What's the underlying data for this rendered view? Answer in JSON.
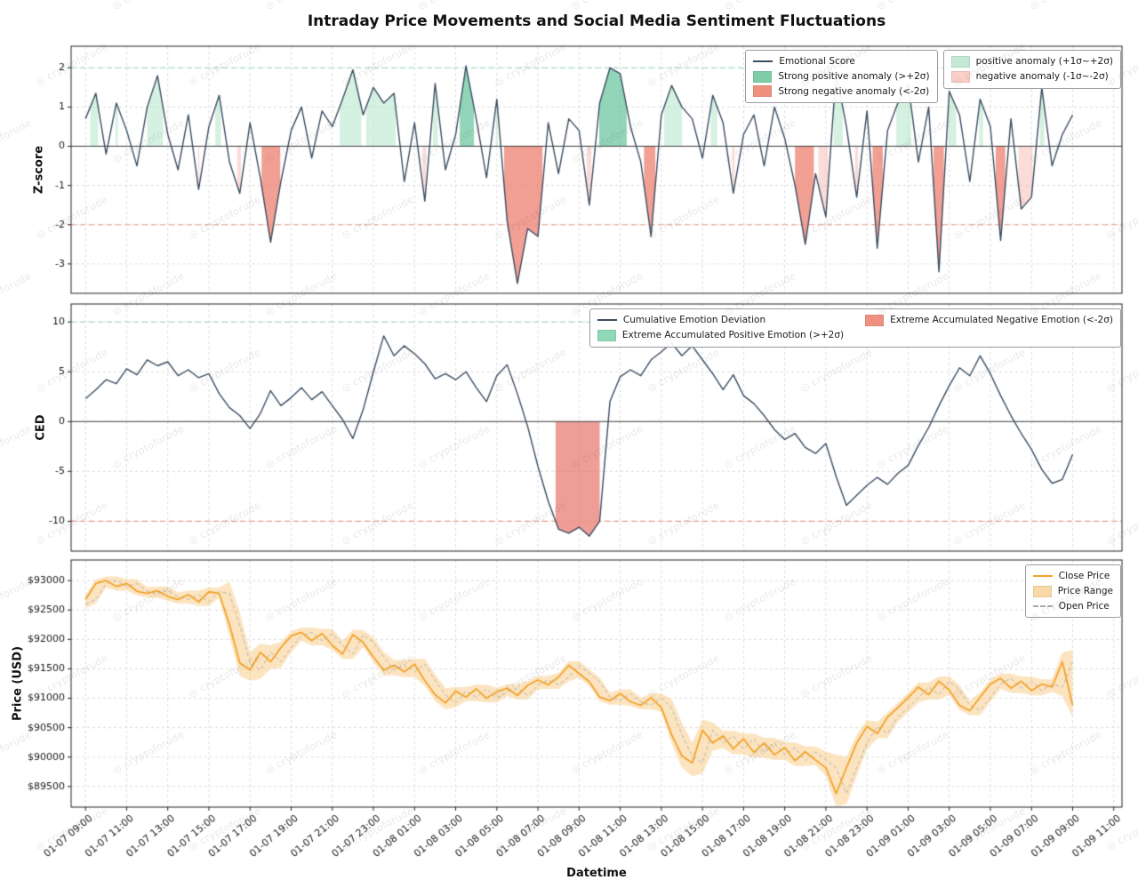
{
  "figure": {
    "title": "Intraday Price Movements and Social Media Sentiment Fluctuations",
    "xlabel": "Datetime",
    "watermark_text": "cryptoforude"
  },
  "x_axis": {
    "tick_interval_hours": 2,
    "step_hours_per_point": 0.5,
    "tick_labels": [
      "01-07 09:00",
      "01-07 11:00",
      "01-07 13:00",
      "01-07 15:00",
      "01-07 17:00",
      "01-07 19:00",
      "01-07 21:00",
      "01-07 23:00",
      "01-08 01:00",
      "01-08 03:00",
      "01-08 05:00",
      "01-08 07:00",
      "01-08 09:00",
      "01-08 11:00",
      "01-08 13:00",
      "01-08 15:00",
      "01-08 17:00",
      "01-08 19:00",
      "01-08 21:00",
      "01-08 23:00",
      "01-09 01:00",
      "01-09 03:00",
      "01-09 05:00",
      "01-09 07:00",
      "01-09 09:00",
      "01-09 11:00"
    ]
  },
  "chart_data": [
    {
      "type": "line",
      "id": "zscore",
      "ylabel": "Z-score",
      "ylim": [
        -3.75,
        2.55
      ],
      "yticks": [
        -3,
        -2,
        -1,
        0,
        1,
        2
      ],
      "ytick_labels": [
        "-3",
        "-2",
        "-1",
        "0",
        "1",
        "2"
      ],
      "thresholds": {
        "upper": 2,
        "lower": -2,
        "inner_upper": 1,
        "inner_lower": -1
      },
      "colors": {
        "line": "#3b4d61",
        "strong_pos": "rgba(110,199,160,0.75)",
        "weak_pos": "rgba(178,230,200,0.55)",
        "strong_neg": "rgba(236,118,102,0.7)",
        "weak_neg": "rgba(248,192,184,0.55)",
        "upper_line": "#8fd9c0",
        "lower_line": "#f29a8b"
      },
      "legend": [
        {
          "label": "Emotional Score",
          "swatch": "line",
          "color": "#3b4d61"
        },
        {
          "label": "Strong positive anomaly (>+2σ)",
          "swatch": "patch",
          "color": "#7fcda7"
        },
        {
          "label": "Strong negative anomaly (<-2σ)",
          "swatch": "patch",
          "color": "#f0917e"
        },
        {
          "label": "positive anomaly (+1σ~+2σ)",
          "swatch": "patch",
          "color": "#c4ead6"
        },
        {
          "label": "negative anomaly (-1σ~-2σ)",
          "swatch": "patch",
          "color": "#f9cfc7"
        }
      ],
      "values": [
        0.7,
        1.35,
        -0.2,
        1.1,
        0.4,
        -0.5,
        1.0,
        1.8,
        0.3,
        -0.6,
        0.8,
        -1.1,
        0.5,
        1.3,
        -0.4,
        -1.2,
        0.6,
        -0.8,
        -2.45,
        -0.9,
        0.4,
        1.0,
        -0.3,
        0.9,
        0.5,
        1.2,
        1.95,
        0.8,
        1.5,
        1.1,
        1.35,
        -0.9,
        0.6,
        -1.4,
        1.6,
        -0.6,
        0.3,
        2.05,
        0.7,
        -0.8,
        1.2,
        -1.9,
        -3.5,
        -2.1,
        -2.3,
        0.6,
        -0.7,
        0.7,
        0.4,
        -1.5,
        1.1,
        2.0,
        1.85,
        0.5,
        -0.4,
        -2.3,
        0.8,
        1.55,
        1.0,
        0.7,
        -0.3,
        1.3,
        0.6,
        -1.2,
        0.3,
        0.8,
        -0.5,
        1.0,
        0.2,
        -1.0,
        -2.5,
        -0.7,
        -1.8,
        1.9,
        0.5,
        -1.3,
        0.9,
        -2.6,
        0.4,
        1.1,
        1.6,
        -0.4,
        1.0,
        -3.2,
        1.4,
        0.8,
        -0.9,
        1.2,
        0.5,
        -2.4,
        0.7,
        -1.6,
        -1.3,
        1.5,
        -0.5,
        0.3,
        0.8
      ]
    },
    {
      "type": "line",
      "id": "ced",
      "ylabel": "CED",
      "ylim": [
        -13,
        11.8
      ],
      "yticks": [
        -10,
        -5,
        0,
        5,
        10
      ],
      "ytick_labels": [
        "-10",
        "-5",
        "0",
        "5",
        "10"
      ],
      "thresholds": {
        "upper": 10,
        "lower": -10
      },
      "colors": {
        "line": "#3b4d61",
        "extreme_neg": "rgba(229,106,94,0.65)",
        "extreme_pos": "rgba(110,199,160,0.6)",
        "upper_line": "#8fd9c0",
        "lower_line": "#f29a8b"
      },
      "legend": [
        {
          "label": "Cumulative Emotion Deviation",
          "swatch": "line",
          "color": "#3b4d61"
        },
        {
          "label": "Extreme Accumulated Positive Emotion (>+2σ)",
          "swatch": "patch",
          "color": "#8fd9b8"
        },
        {
          "label": "Extreme Accumulated Negative Emotion (<-2σ)",
          "swatch": "patch",
          "color": "#ef9181"
        }
      ],
      "values": [
        2.3,
        3.2,
        4.2,
        3.8,
        5.3,
        4.7,
        6.2,
        5.6,
        6.0,
        4.6,
        5.2,
        4.4,
        4.8,
        2.8,
        1.4,
        0.6,
        -0.7,
        0.8,
        3.1,
        1.6,
        2.4,
        3.4,
        2.2,
        3.0,
        1.6,
        0.2,
        -1.7,
        1.2,
        5.0,
        8.6,
        6.6,
        7.6,
        6.8,
        5.8,
        4.3,
        4.8,
        4.2,
        5.0,
        3.4,
        2.0,
        4.6,
        5.7,
        2.8,
        -0.5,
        -4.5,
        -8.0,
        -10.8,
        -11.2,
        -10.6,
        -11.5,
        -10.0,
        2.0,
        4.5,
        5.2,
        4.6,
        6.2,
        7.0,
        7.9,
        6.6,
        7.6,
        6.2,
        4.8,
        3.2,
        4.7,
        2.6,
        1.8,
        0.6,
        -0.8,
        -1.8,
        -1.2,
        -2.6,
        -3.2,
        -2.2,
        -5.5,
        -8.4,
        -7.4,
        -6.4,
        -5.6,
        -6.3,
        -5.2,
        -4.4,
        -2.4,
        -0.6,
        1.6,
        3.6,
        5.4,
        4.6,
        6.6,
        4.8,
        2.6,
        0.6,
        -1.2,
        -2.8,
        -4.8,
        -6.2,
        -5.8,
        -3.3
      ]
    },
    {
      "type": "line",
      "id": "price",
      "ylabel": "Price (USD)",
      "ylim": [
        89150,
        93350
      ],
      "yticks": [
        89500,
        90000,
        90500,
        91000,
        91500,
        92000,
        92500,
        93000
      ],
      "ytick_labels": [
        "$89500",
        "$90000",
        "$90500",
        "$91000",
        "$91500",
        "$92000",
        "$92500",
        "$93000"
      ],
      "colors": {
        "close": "#f2a42c",
        "band": "rgba(249,202,130,0.5)",
        "open": "#b3b3b3"
      },
      "legend": [
        {
          "label": "Close Price",
          "swatch": "line",
          "color": "#f2a42c"
        },
        {
          "label": "Price Range",
          "swatch": "patch",
          "color": "#fad9a8"
        },
        {
          "label": "Open Price",
          "swatch": "dashline",
          "color": "#aaaaaa"
        }
      ],
      "open_first": 92600,
      "close": [
        92680,
        92950,
        93000,
        92900,
        92950,
        92820,
        92780,
        92830,
        92730,
        92680,
        92760,
        92640,
        92810,
        92780,
        92250,
        91600,
        91480,
        91780,
        91620,
        91860,
        92060,
        92120,
        91980,
        92100,
        91900,
        91750,
        92080,
        91950,
        91700,
        91480,
        91560,
        91450,
        91580,
        91300,
        91060,
        90920,
        91120,
        91020,
        91160,
        91000,
        91110,
        91170,
        91050,
        91220,
        91310,
        91230,
        91360,
        91560,
        91420,
        91280,
        91020,
        90960,
        91080,
        90940,
        90880,
        91010,
        90840,
        90380,
        90020,
        89900,
        90460,
        90240,
        90360,
        90140,
        90310,
        90080,
        90240,
        90040,
        90160,
        89940,
        90090,
        89950,
        89820,
        89380,
        89820,
        90240,
        90520,
        90400,
        90680,
        90840,
        91010,
        91190,
        91060,
        91290,
        91140,
        90880,
        90790,
        91020,
        91240,
        91340,
        91170,
        91290,
        91130,
        91240,
        91190,
        91620,
        90880
      ],
      "range_halfwidth": [
        70,
        70,
        70,
        70,
        70,
        70,
        70,
        70,
        70,
        70,
        70,
        70,
        70,
        70,
        200,
        220,
        180,
        150,
        120,
        100,
        80,
        80,
        80,
        80,
        80,
        80,
        80,
        80,
        80,
        90,
        90,
        90,
        90,
        90,
        110,
        110,
        70,
        70,
        70,
        70,
        70,
        70,
        70,
        70,
        70,
        70,
        70,
        70,
        70,
        70,
        70,
        70,
        70,
        70,
        70,
        70,
        70,
        150,
        200,
        220,
        180,
        130,
        90,
        90,
        90,
        90,
        90,
        90,
        90,
        90,
        90,
        90,
        140,
        220,
        180,
        140,
        110,
        80,
        80,
        80,
        80,
        80,
        80,
        80,
        80,
        80,
        80,
        80,
        80,
        80,
        80,
        80,
        80,
        80,
        80,
        160,
        200
      ]
    }
  ]
}
